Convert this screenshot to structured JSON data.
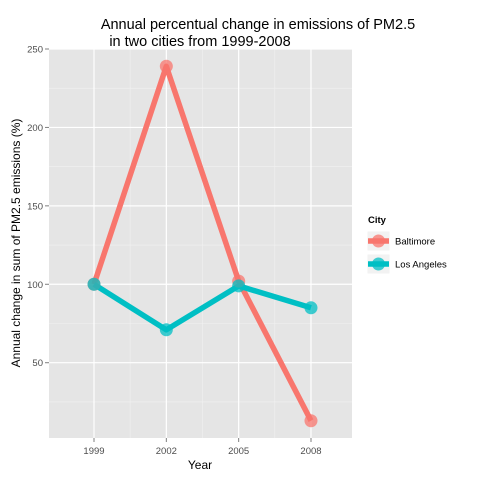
{
  "chart_data": {
    "type": "line",
    "title_lines": [
      "Annual percentual change in emissions of PM2.5",
      "in two cities from 1999-2008"
    ],
    "xlabel": "Year",
    "ylabel": "Annual change in sum of PM2.5 emissions (%)",
    "categories": [
      "1999",
      "2002",
      "2005",
      "2008"
    ],
    "y_ticks": [
      50,
      100,
      150,
      200,
      250
    ],
    "ylim": [
      2,
      250
    ],
    "grid": true,
    "legend_position": "right",
    "legend_title": "City",
    "series": [
      {
        "name": "Baltimore",
        "color": "#F8766D",
        "values": [
          100,
          239,
          102,
          13
        ]
      },
      {
        "name": "Los Angeles",
        "color": "#00BFC4",
        "values": [
          100,
          71,
          99,
          85
        ]
      }
    ]
  }
}
